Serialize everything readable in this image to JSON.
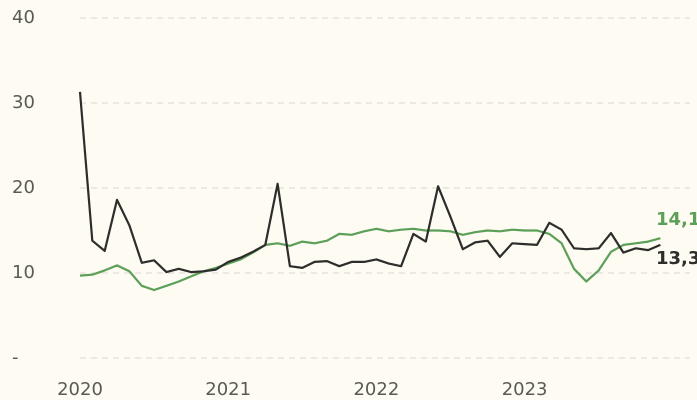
{
  "chart_data": {
    "type": "line",
    "categories": [
      "2020",
      null,
      null,
      null,
      null,
      null,
      null,
      null,
      null,
      null,
      null,
      null,
      "2021",
      null,
      null,
      null,
      null,
      null,
      null,
      null,
      null,
      null,
      null,
      null,
      "2022",
      null,
      null,
      null,
      null,
      null,
      null,
      null,
      null,
      null,
      null,
      null,
      "2023",
      null,
      null,
      null,
      null,
      null,
      null,
      null,
      null,
      null,
      null,
      null
    ],
    "series": [
      {
        "color": "#5b9f58",
        "values": [
          9.7,
          9.8,
          10.3,
          10.9,
          10.2,
          8.5,
          8.0,
          8.5,
          9.0,
          9.6,
          10.2,
          10.6,
          11.1,
          11.6,
          12.4,
          13.3,
          13.5,
          13.2,
          13.7,
          13.5,
          13.8,
          14.6,
          14.5,
          14.9,
          15.2,
          14.9,
          15.1,
          15.2,
          15.0,
          15.0,
          14.9,
          14.5,
          14.8,
          15.0,
          14.9,
          15.1,
          15.0,
          15.0,
          14.6,
          13.5,
          10.5,
          9.0,
          10.3,
          12.5,
          13.3,
          13.5,
          13.7,
          14.1
        ],
        "value_labels": [
          null,
          null,
          null,
          null,
          null,
          null,
          null,
          null,
          null,
          null,
          null,
          null,
          null,
          null,
          null,
          null,
          null,
          null,
          null,
          null,
          null,
          null,
          null,
          null,
          null,
          null,
          null,
          null,
          null,
          null,
          null,
          null,
          null,
          null,
          null,
          null,
          null,
          null,
          null,
          null,
          null,
          null,
          null,
          null,
          null,
          null,
          null,
          "14,1"
        ]
      },
      {
        "color": "#2d2d2b",
        "values": [
          31.3,
          13.8,
          12.6,
          18.6,
          15.6,
          11.2,
          11.5,
          10.1,
          10.5,
          10.1,
          10.2,
          10.4,
          11.3,
          11.8,
          12.5,
          13.3,
          20.5,
          10.8,
          10.6,
          11.3,
          11.4,
          10.8,
          11.3,
          11.3,
          11.6,
          11.1,
          10.8,
          14.6,
          13.7,
          20.2,
          16.6,
          12.8,
          13.6,
          13.8,
          11.9,
          13.5,
          13.4,
          13.3,
          15.9,
          15.1,
          12.9,
          12.8,
          12.9,
          14.7,
          12.4,
          12.9,
          12.7,
          13.3
        ],
        "value_labels": [
          null,
          null,
          null,
          null,
          null,
          null,
          null,
          null,
          null,
          null,
          null,
          null,
          null,
          null,
          null,
          null,
          null,
          null,
          null,
          null,
          null,
          null,
          null,
          null,
          null,
          null,
          null,
          null,
          null,
          null,
          null,
          null,
          null,
          null,
          null,
          null,
          null,
          null,
          null,
          null,
          null,
          null,
          null,
          null,
          null,
          null,
          null,
          "13,3"
        ]
      }
    ],
    "ylim": [
      0,
      40
    ],
    "yticks": [
      {
        "value": 0,
        "label": "-"
      },
      10,
      20,
      30,
      40
    ],
    "grid": true
  }
}
